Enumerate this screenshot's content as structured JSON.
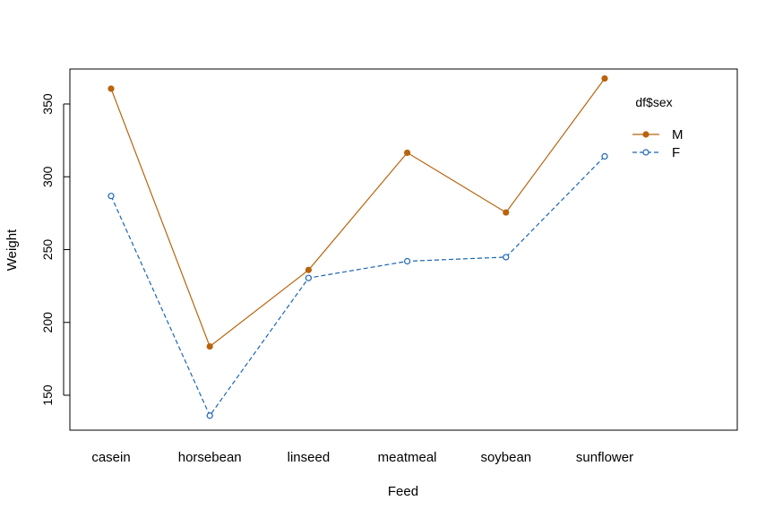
{
  "chart_data": {
    "type": "line",
    "xlabel": "Feed",
    "ylabel": "Weight",
    "categories": [
      "casein",
      "horsebean",
      "linseed",
      "meatmeal",
      "soybean",
      "sunflower"
    ],
    "yticks": [
      150,
      200,
      250,
      300,
      350
    ],
    "ylim": [
      126,
      374
    ],
    "legend": {
      "title": "df$sex",
      "position": "top-right"
    },
    "series": [
      {
        "name": "M",
        "values": [
          360.5,
          183.5,
          236.0,
          316.5,
          275.5,
          367.5
        ],
        "color": "#b8640e",
        "line": "solid",
        "marker": "filled-circle"
      },
      {
        "name": "F",
        "values": [
          286.8,
          136.0,
          230.5,
          242.0,
          244.8,
          314.0
        ],
        "color": "#1a64b4",
        "line": "dashed",
        "marker": "open-circle"
      }
    ]
  }
}
